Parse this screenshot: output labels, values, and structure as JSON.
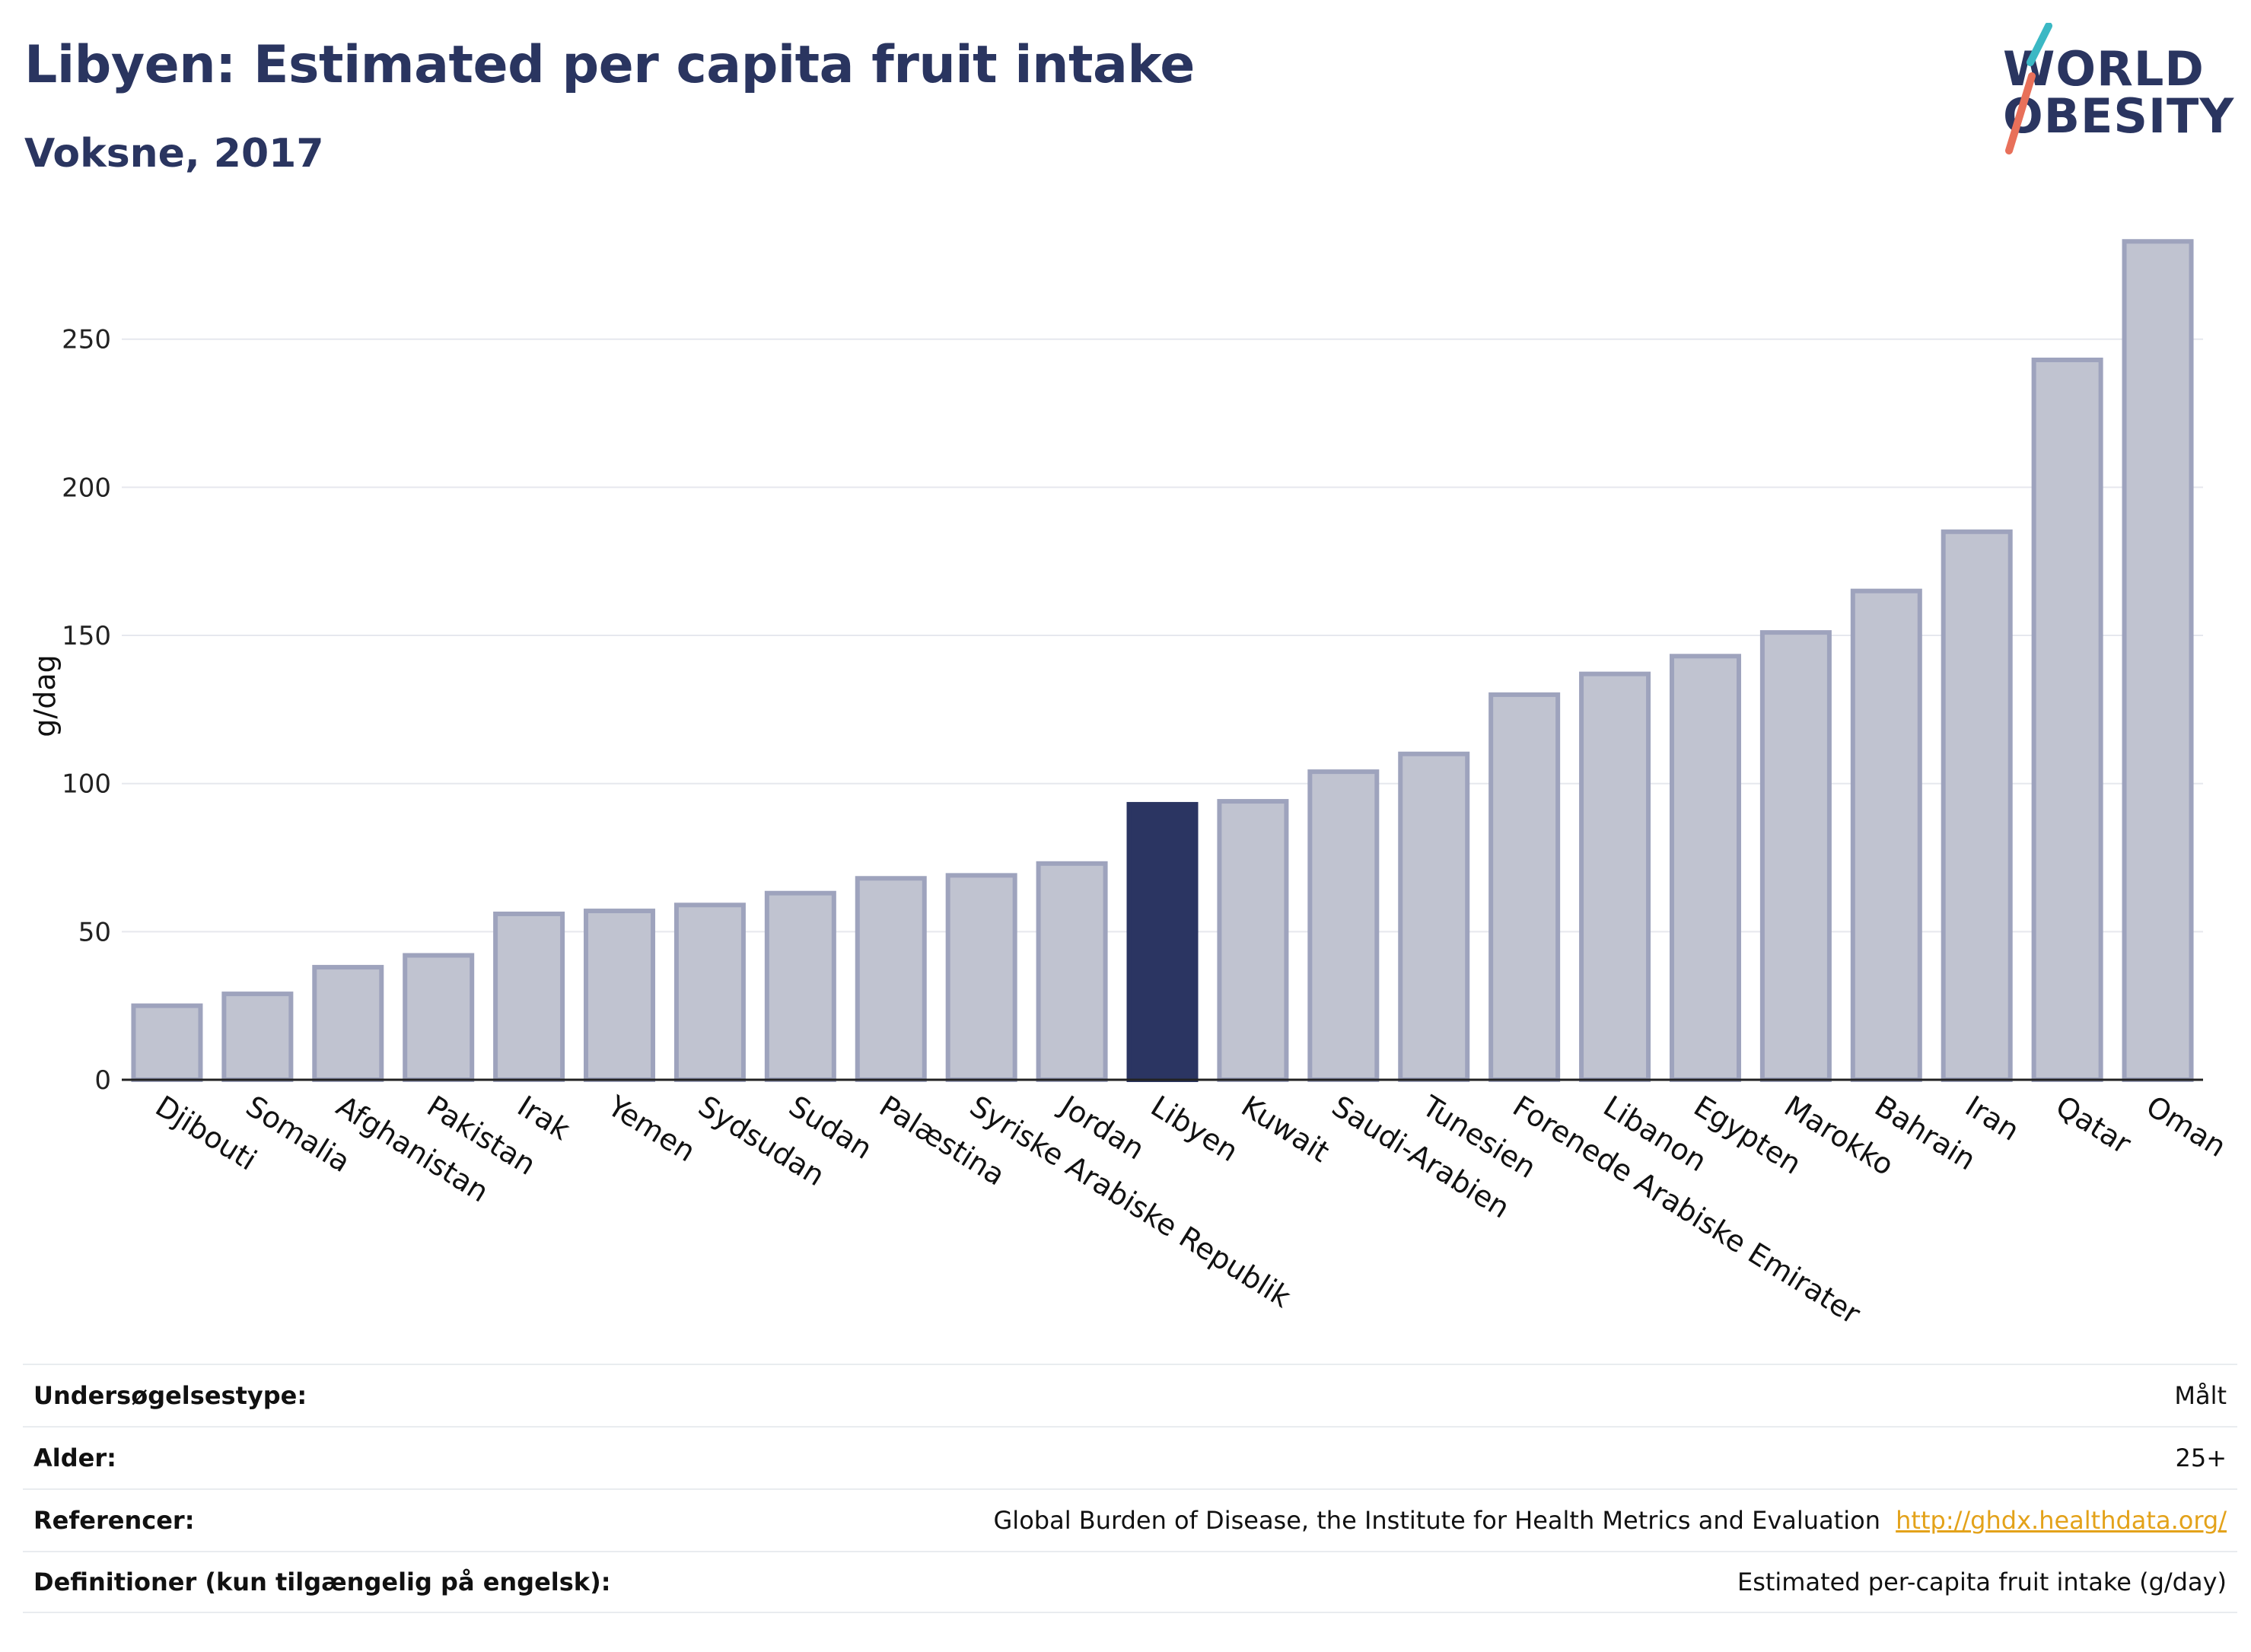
{
  "title": "Libyen: Estimated per capita fruit intake",
  "subtitle": "Voksne, 2017",
  "logo": {
    "line1": "WORLD",
    "line2": "OBESITY",
    "accent_teal": "#3bb8c4",
    "accent_red": "#e8705a"
  },
  "chart_data": {
    "type": "bar",
    "ylabel": "g/dag",
    "ylim": [
      0,
      290
    ],
    "yticks": [
      0,
      50,
      100,
      150,
      200,
      250
    ],
    "grid": true,
    "highlight": "Libyen",
    "colors": {
      "bar": "#c0c3d0",
      "bar_edge": "#9ea3bd",
      "highlight": "#2b3562"
    },
    "categories": [
      "Djibouti",
      "Somalia",
      "Afghanistan",
      "Pakistan",
      "Irak",
      "Yemen",
      "Sydsudan",
      "Sudan",
      "Palæstina",
      "Syriske Arabiske Republik",
      "Jordan",
      "Libyen",
      "Kuwait",
      "Saudi-Arabien",
      "Tunesien",
      "Forenede Arabiske Emirater",
      "Libanon",
      "Egypten",
      "Marokko",
      "Bahrain",
      "Iran",
      "Qatar",
      "Oman"
    ],
    "values": [
      25,
      29,
      38,
      42,
      56,
      57,
      59,
      63,
      68,
      69,
      73,
      93,
      94,
      104,
      110,
      130,
      137,
      143,
      151,
      165,
      185,
      243,
      283
    ]
  },
  "meta": [
    {
      "label": "Undersøgelsestype:",
      "value": "Målt"
    },
    {
      "label": "Alder:",
      "value": "25+"
    },
    {
      "label": "Referencer:",
      "value": "Global Burden of Disease, the Institute for Health Metrics and Evaluation",
      "link": "http://ghdx.healthdata.org/"
    },
    {
      "label": "Definitioner (kun tilgængelig på engelsk):",
      "value": "Estimated per-capita fruit intake (g/day)"
    }
  ]
}
